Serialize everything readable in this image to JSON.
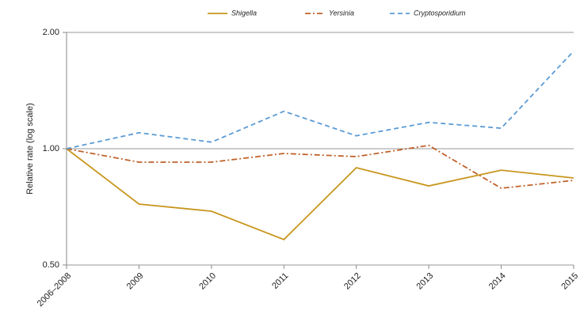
{
  "chart_data": {
    "type": "line",
    "ylabel": "Relative rate (log scale)",
    "categories": [
      "2006–2008",
      "2009",
      "2010",
      "2011",
      "2012",
      "2013",
      "2014",
      "2015"
    ],
    "series": [
      {
        "name": "Shigella",
        "color": "#c8961e",
        "dash": "solid",
        "values": [
          1.0,
          0.719,
          0.689,
          0.582,
          0.893,
          0.801,
          0.88,
          0.84
        ]
      },
      {
        "name": "Yersinia",
        "color": "#c0622b",
        "dash": "dashdot",
        "values": [
          1.0,
          0.923,
          0.923,
          0.972,
          0.954,
          1.02,
          0.79,
          0.828
        ]
      },
      {
        "name": "Cryptosporidium",
        "color": "#5b9bd5",
        "dash": "dash",
        "values": [
          1.0,
          1.1,
          1.04,
          1.25,
          1.08,
          1.17,
          1.13,
          1.79
        ]
      }
    ],
    "log_scale": true,
    "ylim": [
      0.5,
      2.0
    ],
    "yticks": [
      {
        "value": 0.5,
        "label": "0.50"
      },
      {
        "value": 1.0,
        "label": "1.00"
      },
      {
        "value": 2.0,
        "label": "2.00"
      }
    ],
    "grid": true,
    "legend": "top"
  }
}
